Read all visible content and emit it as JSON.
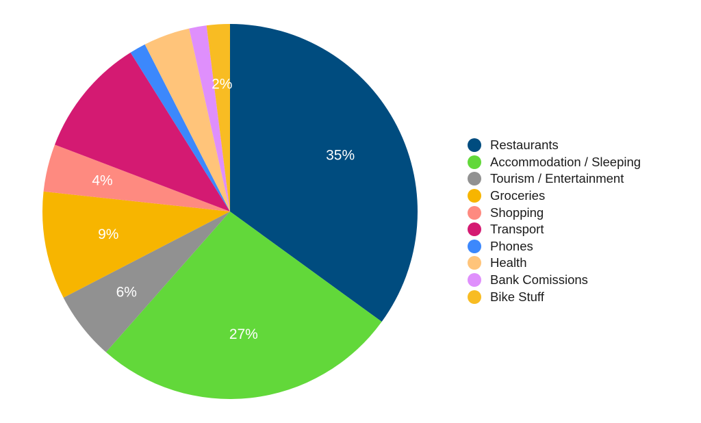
{
  "chart_data": {
    "type": "pie",
    "title": "",
    "categories": [
      "Restaurants",
      "Accommodation / Sleeping",
      "Tourism / Entertainment",
      "Groceries",
      "Shopping",
      "Transport",
      "Phones",
      "Health",
      "Bank Comissions",
      "Bike Stuff"
    ],
    "values": [
      35.0,
      26.5,
      5.9,
      9.3,
      4.1,
      10.3,
      1.4,
      4.0,
      1.5,
      2.0
    ],
    "data_labels": [
      "35%",
      "27%",
      "6%",
      "9%",
      "4%",
      "",
      "",
      "",
      "",
      "2%"
    ],
    "colors": [
      "#004c7f",
      "#62d83a",
      "#919191",
      "#f7b500",
      "#fe8a80",
      "#d41a72",
      "#3c88fc",
      "#ffc47a",
      "#df8ffc",
      "#f8bc23"
    ],
    "start_angle_deg": 0,
    "direction": "clockwise",
    "legend_position": "right"
  },
  "legend": {
    "items": [
      {
        "label": "Restaurants",
        "color": "#004c7f"
      },
      {
        "label": "Accommodation / Sleeping",
        "color": "#62d83a"
      },
      {
        "label": "Tourism / Entertainment",
        "color": "#919191"
      },
      {
        "label": "Groceries",
        "color": "#f7b500"
      },
      {
        "label": "Shopping",
        "color": "#fe8a80"
      },
      {
        "label": "Transport",
        "color": "#d41a72"
      },
      {
        "label": "Phones",
        "color": "#3c88fc"
      },
      {
        "label": "Health",
        "color": "#ffc47a"
      },
      {
        "label": "Bank Comissions",
        "color": "#df8ffc"
      },
      {
        "label": "Bike Stuff",
        "color": "#f8bc23"
      }
    ]
  }
}
